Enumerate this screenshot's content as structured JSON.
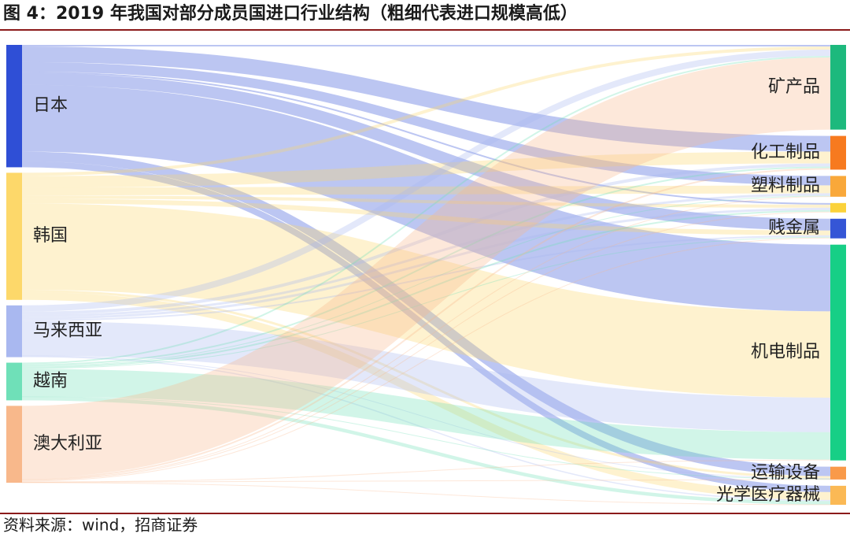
{
  "chart_data": {
    "type": "sankey",
    "title": "图 4：2019 年我国对部分成员国进口行业结构（粗细代表进口规模高低）",
    "source": "资料来源：wind，招商证券",
    "left_nodes": [
      {
        "name": "日本",
        "color": "#2f4fd6"
      },
      {
        "name": "韩国",
        "color": "#fdd86a"
      },
      {
        "name": "马来西亚",
        "color": "#a9b8f0"
      },
      {
        "name": "越南",
        "color": "#6fe0b8"
      },
      {
        "name": "澳大利亚",
        "color": "#f8b88b"
      }
    ],
    "right_nodes": [
      {
        "name": "矿产品",
        "color": "#1db97d"
      },
      {
        "name": "化工制品",
        "color": "#f77a1f"
      },
      {
        "name": "塑料制品",
        "color": "#f9a83a"
      },
      {
        "name": null,
        "color": "#fbd23a"
      },
      {
        "name": "贱金属",
        "color": "#3556d6"
      },
      {
        "name": "机电制品",
        "color": "#17cf86"
      },
      {
        "name": "运输设备",
        "color": "#f99a4a"
      },
      {
        "name": "光学医疗器械",
        "color": "#fbb955"
      }
    ],
    "flows": [
      [
        2,
        20,
        12,
        2,
        15,
        85,
        12,
        8
      ],
      [
        4,
        15,
        10,
        4,
        6,
        110,
        3,
        10
      ],
      [
        8,
        4,
        3,
        3,
        2,
        44,
        0.5,
        1.5
      ],
      [
        2,
        2,
        1,
        2,
        1,
        35,
        0.5,
        4.5
      ],
      [
        92,
        2,
        0.5,
        1,
        1,
        1,
        0.3,
        0.2
      ]
    ]
  }
}
